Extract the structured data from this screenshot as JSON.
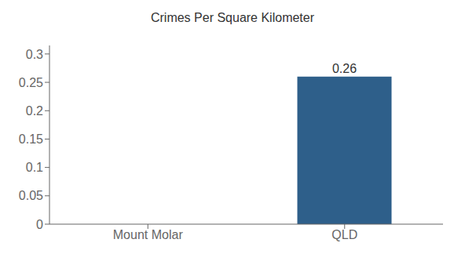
{
  "chart_data": {
    "type": "bar",
    "title": "Crimes Per Square Kilometer",
    "categories": [
      "Mount Molar",
      "QLD"
    ],
    "values": [
      0,
      0.26
    ],
    "colors": [
      "#3d6b99",
      "#2e5f8a"
    ],
    "ylim": [
      0,
      0.315
    ],
    "yticks": [
      0,
      0.05,
      0.1,
      0.15,
      0.2,
      0.25,
      0.3
    ],
    "grid": false,
    "data_labels": true
  }
}
